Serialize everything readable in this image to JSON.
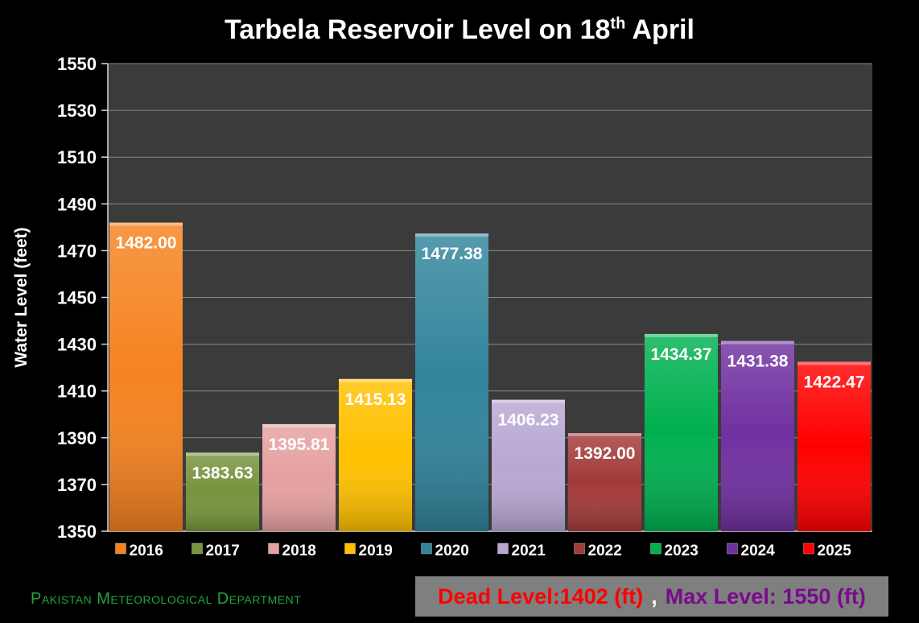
{
  "title_main": "Tarbela Reservoir Level on 18",
  "title_sup": "th",
  "title_end": " April",
  "organization": "Pakistan Meteorological Department",
  "dead_level_text": "Dead Level:1402 (ft)",
  "separator": ",",
  "max_level_text": "Max Level: 1550 (ft)",
  "chart_data": {
    "type": "bar",
    "title": "Tarbela Reservoir Level on 18th April",
    "ylabel": "Water Level  (feet)",
    "xlabel": "",
    "ylim": [
      1350,
      1550
    ],
    "yticks": [
      1350,
      1370,
      1390,
      1410,
      1430,
      1450,
      1470,
      1490,
      1510,
      1530,
      1550
    ],
    "grid": true,
    "legend": "bottom",
    "categories": [
      "2016",
      "2017",
      "2018",
      "2019",
      "2020",
      "2021",
      "2022",
      "2023",
      "2024",
      "2025"
    ],
    "values": [
      1482.0,
      1383.63,
      1395.81,
      1415.13,
      1477.38,
      1406.23,
      1392.0,
      1434.37,
      1431.38,
      1422.47
    ],
    "value_labels": [
      "1482.00",
      "1383.63",
      "1395.81",
      "1415.13",
      "1477.38",
      "1406.23",
      "1392.00",
      "1434.37",
      "1431.38",
      "1422.47"
    ],
    "colors": [
      "#f5821f",
      "#77933c",
      "#e6a0a0",
      "#ffc000",
      "#31849b",
      "#b8a7d3",
      "#a33a3a",
      "#00b050",
      "#7030a0",
      "#ff0000"
    ]
  }
}
